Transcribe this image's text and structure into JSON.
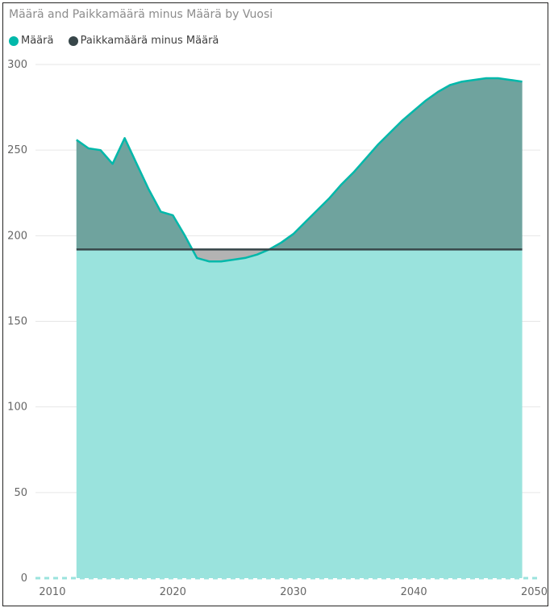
{
  "colors": {
    "maara": "#01B8AA",
    "maara_fill": "#9AE3DD",
    "minus": "#374649",
    "excess_fill": "#6FA39E",
    "deficit_fill": "#B3B3B3",
    "grid": "#E6E6E6"
  },
  "chart_data": {
    "type": "area",
    "title": "Määrä and Paikkamäärä minus Määrä by Vuosi",
    "xlabel": "",
    "ylabel": "",
    "xlim": [
      2009,
      2050.5
    ],
    "ylim": [
      0,
      300
    ],
    "x_ticks": [
      2010,
      2020,
      2030,
      2040,
      2050
    ],
    "y_ticks": [
      0,
      50,
      100,
      150,
      200,
      250,
      300
    ],
    "grid": true,
    "legend_position": "top-left",
    "series": [
      {
        "name": "Määrä",
        "x": [
          2012,
          2013,
          2014,
          2015,
          2016,
          2017,
          2018,
          2019,
          2020,
          2021,
          2022,
          2023,
          2024,
          2025,
          2026,
          2027,
          2028,
          2029,
          2030,
          2031,
          2032,
          2033,
          2034,
          2035,
          2036,
          2037,
          2038,
          2039,
          2040,
          2041,
          2042,
          2043,
          2044,
          2045,
          2046,
          2047,
          2048,
          2049
        ],
        "values": [
          256,
          251,
          250,
          242,
          257,
          242,
          227,
          214,
          212,
          200,
          187,
          185,
          185,
          186,
          187,
          189,
          192,
          196,
          201,
          208,
          215,
          222,
          230,
          237,
          245,
          253,
          260,
          267,
          273,
          279,
          284,
          288,
          290,
          291,
          292,
          292,
          291,
          290
        ]
      },
      {
        "name": "Paikkamäärä minus Määrä",
        "x": [
          2012,
          2049
        ],
        "values": [
          192,
          192
        ]
      }
    ]
  }
}
